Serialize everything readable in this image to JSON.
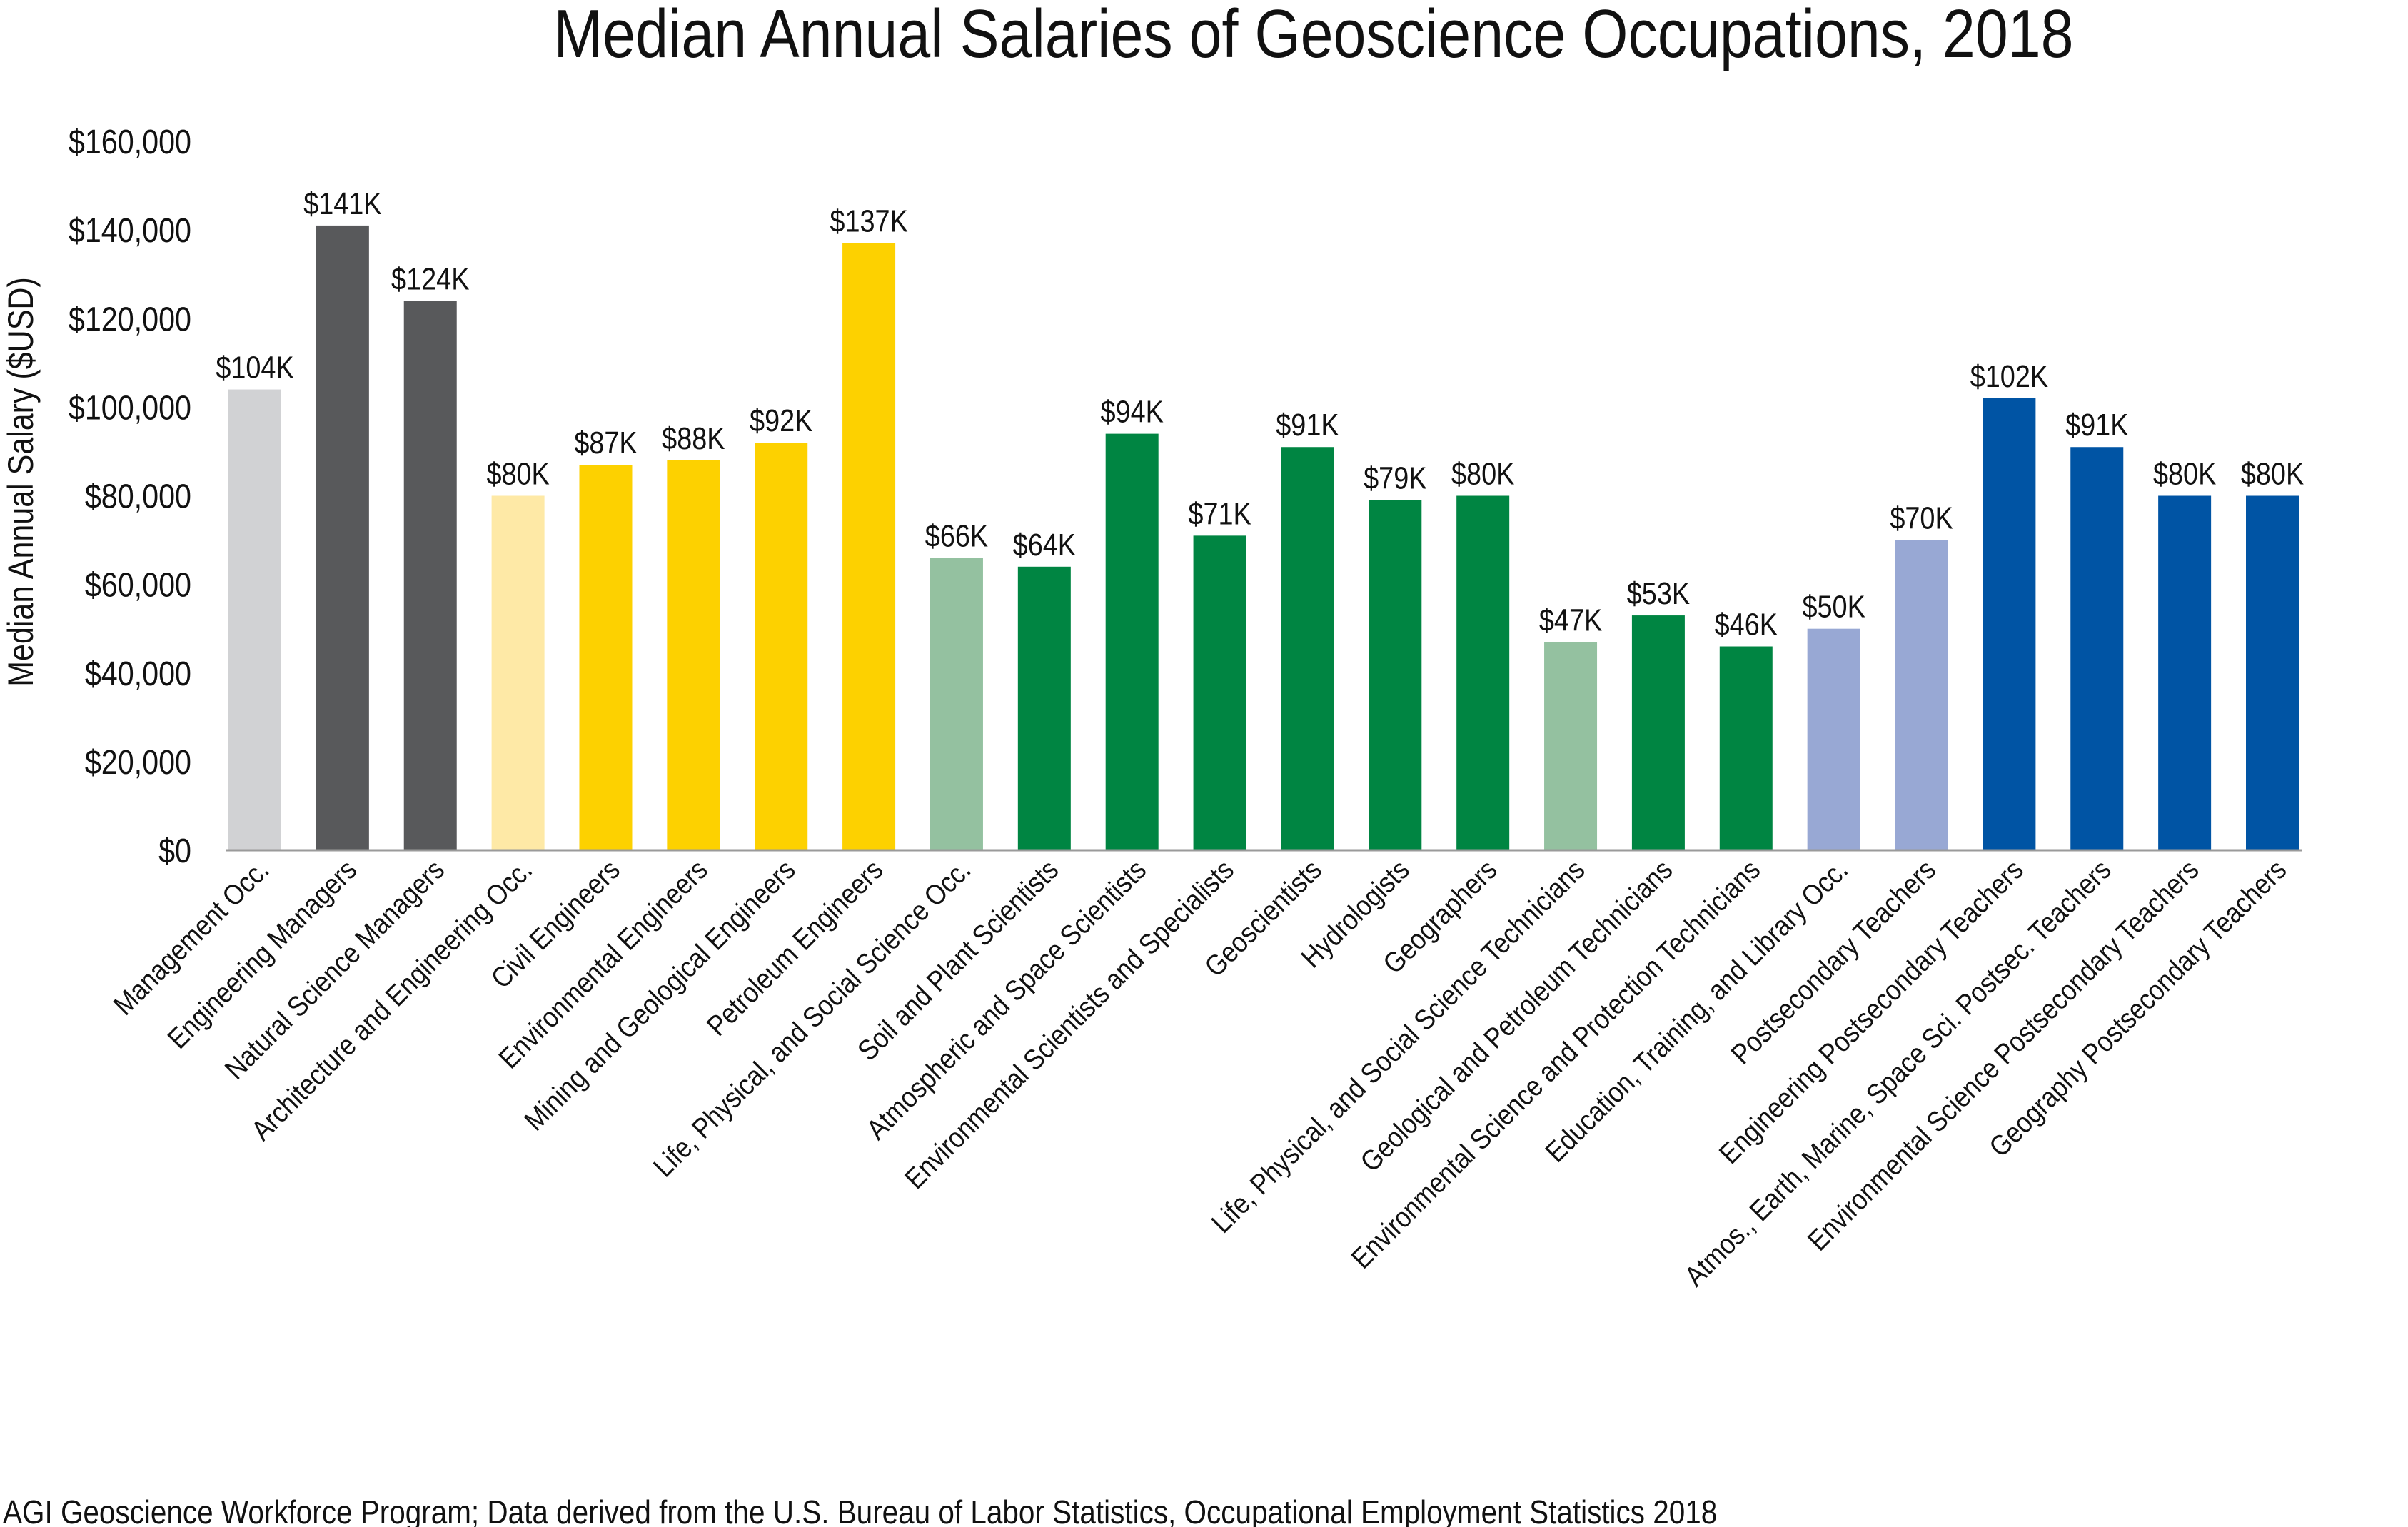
{
  "chart_data": {
    "type": "bar",
    "title": "Median Annual Salaries of Geoscience Occupations, 2018",
    "xlabel": "",
    "ylabel": "Median Annual Salary ($USD)",
    "ylim": [
      0,
      160000
    ],
    "yticks": [
      "$0",
      "$20,000",
      "$40,000",
      "$60,000",
      "$80,000",
      "$100,000",
      "$120,000",
      "$140,000",
      "$160,000"
    ],
    "grid": false,
    "legend": "none",
    "categories": [
      "Management Occ.",
      "Engineering Managers",
      "Natural Science Managers",
      "Architecture and Engineering Occ.",
      "Civil Engineers",
      "Environmental Engineers",
      "Mining and Geological Engineers",
      "Petroleum Engineers",
      "Life, Physical, and Social Science Occ.",
      "Soil and Plant Scientists",
      "Atmospheric and Space Scientists",
      "Environmental Scientists and Specialists",
      "Geoscientists",
      "Hydrologists",
      "Geographers",
      "Life, Physical, and Social Science Technicians",
      "Geological and Petroleum Technicians",
      "Environmental Science and Protection Technicians",
      "Education, Training, and Library Occ.",
      "Postsecondary Teachers",
      "Engineering Postsecondary Teachers",
      "Atmos., Earth, Marine, Space Sci. Postsec. Teachers",
      "Environmental Science Postsecondary Teachers",
      "Geography Postsecondary Teachers"
    ],
    "values": [
      104000,
      141000,
      124000,
      80000,
      87000,
      88000,
      92000,
      137000,
      66000,
      64000,
      94000,
      71000,
      91000,
      79000,
      80000,
      47000,
      53000,
      46000,
      50000,
      70000,
      102000,
      91000,
      80000,
      80000
    ],
    "data_labels": [
      "$104K",
      "$141K",
      "$124K",
      "$80K",
      "$87K",
      "$88K",
      "$92K",
      "$137K",
      "$66K",
      "$64K",
      "$94K",
      "$71K",
      "$91K",
      "$79K",
      "$80K",
      "$47K",
      "$53K",
      "$46K",
      "$50K",
      "$70K",
      "$102K",
      "$91K",
      "$80K",
      "$80K"
    ],
    "colors": [
      "#d1d2d4",
      "#58595b",
      "#58595b",
      "#fee9a6",
      "#fdd100",
      "#fdd100",
      "#fdd100",
      "#fdd100",
      "#94c1a0",
      "#008542",
      "#008542",
      "#008542",
      "#008542",
      "#008542",
      "#008542",
      "#94c1a0",
      "#008542",
      "#008542",
      "#98a8d4",
      "#98a8d4",
      "#0054a4",
      "#0054a4",
      "#0054a4",
      "#0054a4"
    ]
  },
  "footer": "AGI Geoscience Workforce Program; Data derived from the U.S. Bureau of Labor Statistics, Occupational Employment Statistics 2018"
}
